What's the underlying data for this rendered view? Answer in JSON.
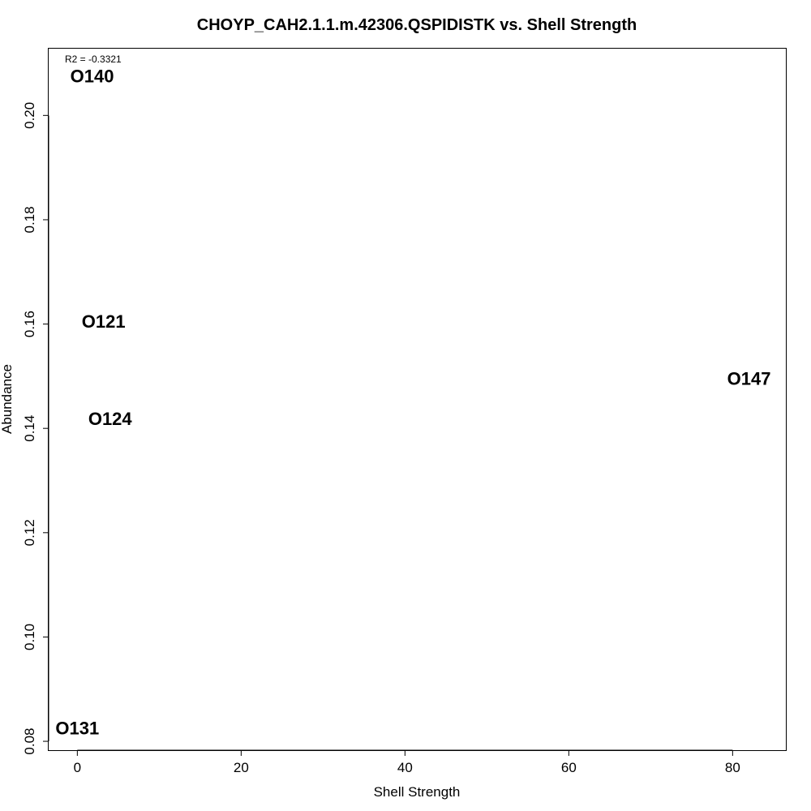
{
  "chart_data": {
    "type": "scatter",
    "title": "CHOYP_CAH2.1.1.m.42306.QSPIDISTK vs. Shell Strength",
    "xlabel": "Shell Strength",
    "ylabel": "Abundance",
    "xlim": [
      -3.5,
      86.5
    ],
    "ylim": [
      0.0783,
      0.2128
    ],
    "x_ticks": [
      0,
      20,
      40,
      60,
      80
    ],
    "x_tick_labels": [
      "0",
      "20",
      "40",
      "60",
      "80"
    ],
    "y_ticks": [
      0.08,
      0.1,
      0.12,
      0.14,
      0.16,
      0.18,
      0.2
    ],
    "y_tick_labels": [
      "0.08",
      "0.10",
      "0.12",
      "0.14",
      "0.16",
      "0.18",
      "0.20"
    ],
    "grid": false,
    "annotation": "R2 = -0.3321",
    "points": [
      {
        "label": "O140",
        "x": 1.8,
        "y": 0.2075
      },
      {
        "label": "O121",
        "x": 3.2,
        "y": 0.1605
      },
      {
        "label": "O124",
        "x": 4.0,
        "y": 0.1418
      },
      {
        "label": "O147",
        "x": 82.0,
        "y": 0.1495
      },
      {
        "label": "O131",
        "x": 0.0,
        "y": 0.0825
      }
    ]
  }
}
